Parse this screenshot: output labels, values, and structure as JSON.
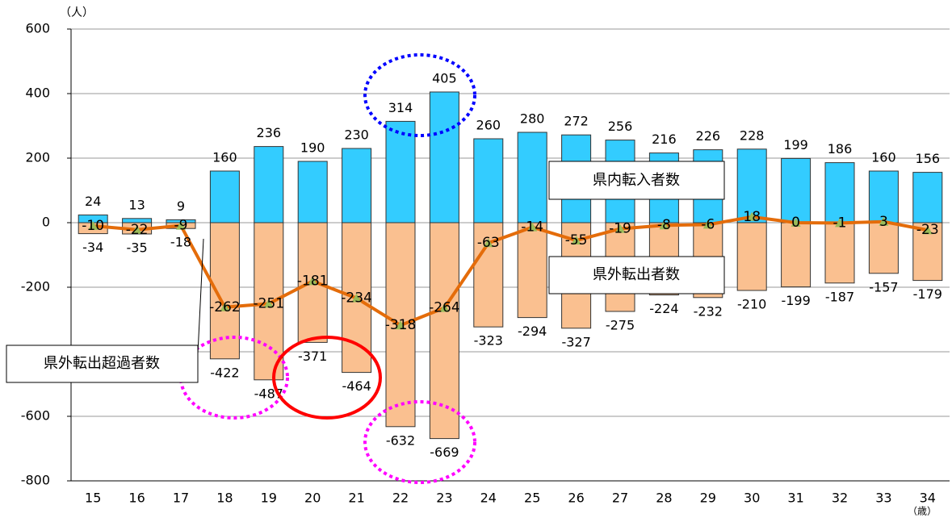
{
  "chart_data": {
    "type": "bar",
    "y_unit": "（人）",
    "x_unit": "（歳）",
    "categories": [
      "15",
      "16",
      "17",
      "18",
      "19",
      "20",
      "21",
      "22",
      "23",
      "24",
      "25",
      "26",
      "27",
      "28",
      "29",
      "30",
      "31",
      "32",
      "33",
      "34"
    ],
    "series": [
      {
        "name": "県内転入者数",
        "type": "bar",
        "color": "#33ccff",
        "values": [
          24,
          13,
          9,
          160,
          236,
          190,
          230,
          314,
          405,
          260,
          280,
          272,
          256,
          216,
          226,
          228,
          199,
          186,
          160,
          156
        ]
      },
      {
        "name": "県外転出者数",
        "type": "bar",
        "color": "#fac090",
        "values": [
          -34,
          -35,
          -18,
          -422,
          -487,
          -371,
          -464,
          -632,
          -669,
          -323,
          -294,
          -327,
          -275,
          -224,
          -232,
          -210,
          -199,
          -187,
          -157,
          -179
        ]
      },
      {
        "name": "県外転出超過者数",
        "type": "line",
        "color": "#e46c0a",
        "values": [
          -10,
          -22,
          -9,
          -262,
          -251,
          -181,
          -234,
          -318,
          -264,
          -63,
          -14,
          -55,
          -19,
          -8,
          -6,
          18,
          0,
          -1,
          3,
          -23
        ]
      }
    ],
    "ylim": [
      -800,
      600
    ],
    "yticks": [
      600,
      400,
      200,
      0,
      -200,
      -400,
      -600,
      -800
    ],
    "grid": true
  }
}
